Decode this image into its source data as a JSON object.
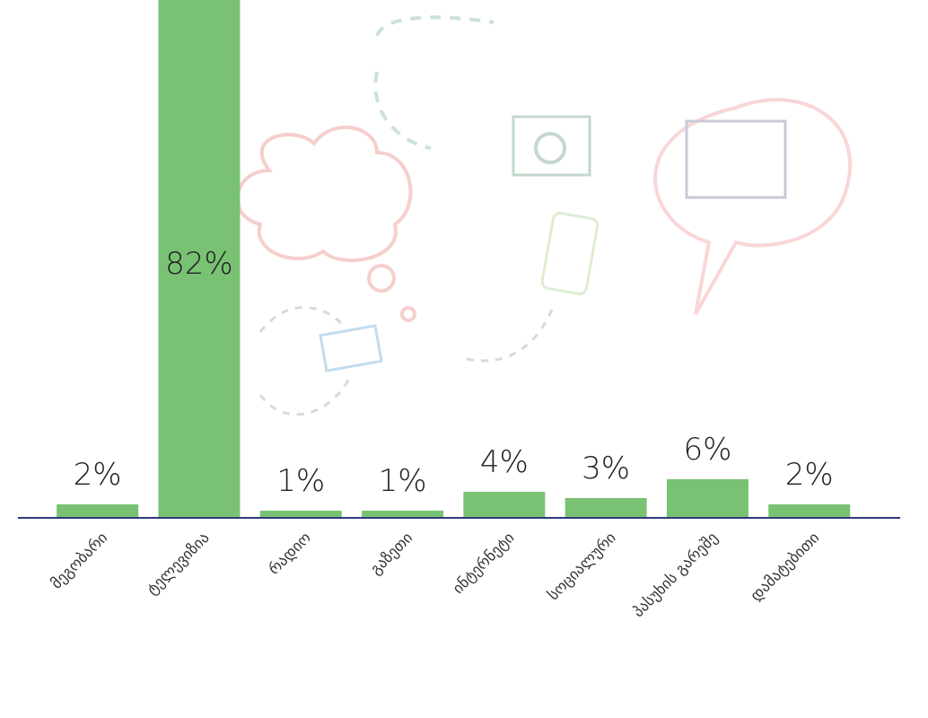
{
  "chart_data": {
    "type": "bar",
    "categories": [
      "მეგობარი",
      "ტელევიზია",
      "რადიო",
      "გაზეთი",
      "ინტერნეტი",
      "სოციალური",
      "პასუხის გარეშე",
      "დამატებითი"
    ],
    "values": [
      2,
      82,
      1,
      1,
      4,
      3,
      6,
      2
    ],
    "value_labels": [
      "2%",
      "82%",
      "1%",
      "1%",
      "4%",
      "3%",
      "6%",
      "2%"
    ],
    "color": "#79c274",
    "ylim": [
      0,
      82
    ]
  }
}
